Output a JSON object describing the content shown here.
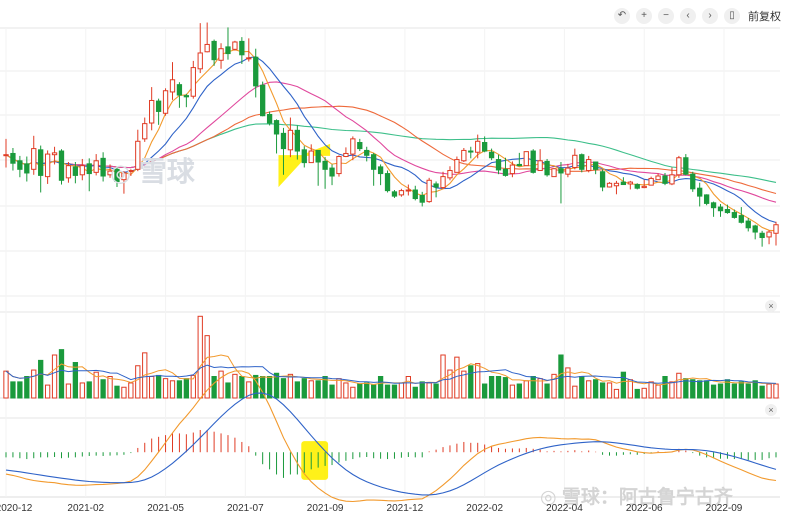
{
  "toolbar": {
    "buttons": [
      {
        "icon": "undo-icon",
        "glyph": "↶"
      },
      {
        "icon": "plus-icon",
        "glyph": "+"
      },
      {
        "icon": "minus-icon",
        "glyph": "−"
      },
      {
        "icon": "chevron-left-icon",
        "glyph": "‹"
      },
      {
        "icon": "chevron-right-icon",
        "glyph": "›"
      },
      {
        "icon": "stock-icon",
        "glyph": "▯"
      }
    ],
    "adjust_label": "前复权"
  },
  "watermark": {
    "center": "雪球",
    "corner": "雪球：阿古鲁宁古齐"
  },
  "colors": {
    "up": "#e03b24",
    "down": "#1a9a3c",
    "ma5": "#f29a2e",
    "ma10": "#2f63c8",
    "ma20": "#e0489d",
    "ma30": "#ee6a3b",
    "ma60": "#3dbf8a",
    "highlight": "#fff000"
  },
  "chart_data": {
    "type": "candlestick",
    "x_ticks": [
      "2020-12",
      "2021-02",
      "2021-05",
      "2021-07",
      "2021-09",
      "2021-12",
      "2022-02",
      "2022-04",
      "2022-06",
      "2022-09"
    ],
    "price_range": [
      4,
      48
    ],
    "price": [
      [
        27.2,
        27.2,
        29.8,
        25.1
      ],
      [
        27.4,
        25.8,
        28.3,
        24.6
      ],
      [
        26.2,
        24.8,
        27.0,
        23.5
      ],
      [
        25.7,
        24.2,
        26.9,
        22.8
      ],
      [
        24.8,
        28.2,
        30.3,
        23.9
      ],
      [
        28.0,
        23.8,
        28.7,
        21.0
      ],
      [
        23.6,
        27.3,
        27.9,
        22.4
      ],
      [
        27.2,
        27.5,
        28.5,
        25.6
      ],
      [
        27.8,
        23.0,
        28.1,
        22.3
      ],
      [
        23.4,
        25.4,
        26.0,
        22.6
      ],
      [
        25.2,
        23.8,
        26.0,
        22.5
      ],
      [
        23.9,
        25.4,
        26.5,
        23.0
      ],
      [
        25.7,
        24.1,
        26.6,
        21.2
      ],
      [
        24.3,
        26.2,
        27.3,
        23.8
      ],
      [
        26.6,
        23.7,
        27.6,
        22.8
      ],
      [
        23.9,
        24.5,
        25.6,
        23.4
      ],
      [
        24.8,
        22.8,
        25.2,
        21.9
      ],
      [
        23.1,
        24.2,
        24.5,
        20.8
      ],
      [
        24.5,
        24.6,
        24.8,
        23.7
      ],
      [
        24.8,
        29.4,
        31.3,
        24.5
      ],
      [
        29.8,
        32.3,
        33.3,
        29.3
      ],
      [
        32.4,
        36.1,
        38.3,
        31.2
      ],
      [
        36.0,
        34.3,
        36.4,
        32.1
      ],
      [
        34.0,
        37.7,
        38.1,
        33.6
      ],
      [
        37.5,
        39.5,
        42.4,
        36.2
      ],
      [
        38.7,
        37.0,
        39.1,
        34.9
      ],
      [
        36.9,
        36.7,
        37.2,
        35.0
      ],
      [
        36.8,
        41.5,
        42.6,
        36.4
      ],
      [
        41.3,
        43.9,
        48.8,
        40.6
      ],
      [
        44.1,
        45.3,
        48.9,
        44.0
      ],
      [
        45.8,
        42.8,
        46.1,
        41.8
      ],
      [
        42.7,
        44.6,
        45.5,
        41.3
      ],
      [
        44.9,
        43.8,
        48.1,
        42.8
      ],
      [
        44.5,
        45.7,
        45.9,
        44.3
      ],
      [
        45.8,
        43.6,
        46.5,
        42.1
      ],
      [
        43.1,
        43.1,
        46.3,
        42.5
      ],
      [
        43.2,
        38.5,
        44.6,
        36.6
      ],
      [
        38.6,
        33.6,
        39.2,
        33.5
      ],
      [
        33.8,
        32.4,
        34.3,
        32.0
      ],
      [
        32.8,
        30.6,
        33.0,
        27.4
      ],
      [
        30.7,
        28.2,
        31.6,
        23.9
      ],
      [
        28.0,
        31.2,
        33.3,
        26.8
      ],
      [
        31.2,
        27.8,
        32.0,
        26.4
      ],
      [
        28.0,
        25.9,
        28.6,
        25.1
      ],
      [
        25.9,
        27.8,
        28.9,
        27.0
      ],
      [
        27.9,
        26.0,
        27.8,
        22.1
      ],
      [
        26.1,
        24.8,
        26.8,
        21.6
      ],
      [
        25.0,
        23.7,
        25.6,
        22.2
      ],
      [
        24.1,
        26.9,
        27.1,
        23.6
      ],
      [
        26.9,
        27.4,
        28.4,
        26.8
      ],
      [
        27.3,
        29.8,
        30.2,
        26.3
      ],
      [
        29.2,
        28.2,
        29.8,
        27.8
      ],
      [
        27.9,
        27.1,
        28.5,
        26.1
      ],
      [
        27.2,
        24.8,
        27.5,
        22.1
      ],
      [
        25.2,
        24.1,
        25.6,
        22.2
      ],
      [
        24.1,
        21.3,
        24.6,
        21.0
      ],
      [
        21.1,
        20.4,
        21.4,
        20.1
      ],
      [
        20.6,
        21.3,
        21.6,
        20.3
      ],
      [
        21.3,
        21.4,
        22.3,
        20.5
      ],
      [
        21.4,
        20.0,
        22.1,
        19.7
      ],
      [
        20.5,
        19.4,
        21.1,
        18.7
      ],
      [
        19.5,
        23.0,
        23.4,
        19.3
      ],
      [
        22.4,
        21.9,
        22.8,
        20.2
      ],
      [
        21.8,
        23.6,
        24.4,
        21.6
      ],
      [
        23.4,
        24.6,
        25.3,
        23.0
      ],
      [
        24.3,
        26.4,
        26.9,
        24.3
      ],
      [
        26.2,
        27.9,
        28.3,
        26.0
      ],
      [
        27.8,
        27.7,
        28.5,
        26.6
      ],
      [
        27.6,
        29.4,
        30.5,
        26.6
      ],
      [
        29.2,
        27.8,
        30.2,
        27.6
      ],
      [
        27.6,
        26.7,
        28.2,
        26.3
      ],
      [
        26.4,
        24.7,
        27.2,
        24.0
      ],
      [
        24.8,
        23.8,
        26.7,
        23.6
      ],
      [
        24.1,
        25.5,
        26.1,
        23.5
      ],
      [
        25.6,
        25.4,
        27.5,
        25.3
      ],
      [
        25.4,
        27.7,
        27.6,
        25.4
      ],
      [
        27.8,
        24.3,
        28.1,
        24.1
      ],
      [
        24.6,
        26.2,
        28.1,
        24.6
      ],
      [
        26.1,
        23.9,
        26.5,
        23.6
      ],
      [
        23.6,
        24.9,
        25.0,
        23.8
      ],
      [
        24.9,
        24.2,
        26.0,
        19.2
      ],
      [
        24.0,
        25.0,
        25.7,
        23.5
      ],
      [
        25.1,
        27.1,
        28.2,
        24.8
      ],
      [
        27.2,
        24.8,
        27.4,
        24.3
      ],
      [
        24.6,
        26.4,
        27.0,
        24.3
      ],
      [
        26.0,
        24.8,
        25.8,
        24.0
      ],
      [
        24.4,
        21.9,
        24.8,
        21.2
      ],
      [
        21.9,
        22.5,
        22.7,
        21.8
      ],
      [
        22.1,
        22.5,
        22.9,
        20.7
      ],
      [
        22.7,
        22.3,
        23.5,
        22.3
      ],
      [
        22.4,
        22.7,
        22.9,
        21.5
      ],
      [
        22.3,
        21.7,
        22.5,
        21.5
      ],
      [
        21.8,
        22.0,
        23.1,
        21.7
      ],
      [
        22.2,
        23.3,
        23.6,
        22.2
      ],
      [
        23.1,
        23.7,
        24.1,
        23.3
      ],
      [
        23.7,
        22.5,
        24.2,
        22.2
      ],
      [
        22.4,
        23.9,
        25.1,
        22.2
      ],
      [
        23.9,
        26.7,
        27.0,
        23.4
      ],
      [
        26.7,
        24.0,
        27.3,
        23.8
      ],
      [
        24.0,
        21.6,
        24.4,
        21.1
      ],
      [
        21.7,
        20.4,
        22.6,
        18.7
      ],
      [
        20.6,
        19.2,
        20.7,
        18.9
      ],
      [
        19.3,
        18.5,
        19.5,
        17.0
      ],
      [
        18.6,
        18.0,
        19.1,
        17.0
      ],
      [
        18.2,
        17.7,
        19.0,
        17.5
      ],
      [
        17.7,
        16.9,
        18.2,
        16.7
      ],
      [
        17.2,
        16.1,
        18.6,
        15.9
      ],
      [
        16.3,
        15.2,
        16.8,
        14.6
      ],
      [
        15.5,
        14.5,
        15.7,
        13.3
      ],
      [
        14.3,
        13.6,
        14.7,
        12.1
      ],
      [
        13.7,
        14.5,
        14.8,
        12.5
      ],
      [
        14.3,
        15.7,
        16.2,
        12.3
      ]
    ],
    "volume_range": [
      0,
      80
    ],
    "volume": [
      25,
      15,
      15,
      20,
      26,
      35,
      12,
      40,
      45,
      13,
      33,
      14,
      15,
      24,
      17,
      20,
      11,
      10,
      14,
      30,
      42,
      20,
      21,
      18,
      16,
      16,
      18,
      21,
      76,
      58,
      20,
      25,
      14,
      22,
      20,
      15,
      21,
      20,
      20,
      23,
      18,
      22,
      15,
      18,
      16,
      16,
      20,
      12,
      18,
      14,
      10,
      13,
      14,
      12,
      20,
      12,
      12,
      14,
      20,
      10,
      15,
      14,
      13,
      40,
      26,
      38,
      25,
      30,
      32,
      13,
      20,
      20,
      19,
      12,
      13,
      16,
      20,
      18,
      13,
      22,
      40,
      28,
      11,
      20,
      16,
      17,
      14,
      14,
      8,
      24,
      17,
      8,
      9,
      15,
      12,
      20,
      15,
      23,
      18,
      17,
      16,
      16,
      12,
      13,
      17,
      13,
      15,
      13,
      16,
      11,
      13,
      13
    ],
    "macd_range": [
      -2.5,
      2.0
    ],
    "macd_hist": [
      -0.3,
      -0.3,
      -0.35,
      -0.4,
      -0.35,
      -0.3,
      -0.3,
      -0.28,
      -0.35,
      -0.32,
      -0.3,
      -0.25,
      -0.22,
      -0.2,
      -0.22,
      -0.2,
      -0.18,
      -0.15,
      -0.05,
      0.25,
      0.55,
      0.8,
      0.9,
      1.0,
      1.1,
      1.1,
      1.05,
      1.15,
      1.3,
      1.3,
      1.2,
      1.1,
      1.0,
      0.85,
      0.6,
      0.35,
      -0.2,
      -0.7,
      -1.0,
      -1.3,
      -1.5,
      -1.3,
      -1.3,
      -1.2,
      -1.0,
      -0.9,
      -0.8,
      -0.75,
      -0.6,
      -0.5,
      -0.4,
      -0.3,
      -0.28,
      -0.35,
      -0.38,
      -0.4,
      -0.38,
      -0.32,
      -0.28,
      -0.3,
      -0.3,
      0.05,
      0.15,
      0.3,
      0.4,
      0.5,
      0.6,
      0.55,
      0.55,
      0.45,
      0.35,
      0.25,
      0.2,
      0.22,
      0.22,
      0.25,
      0.2,
      0.15,
      0.05,
      0.08,
      0.05,
      0.08,
      0.12,
      0.05,
      0.1,
      0.03,
      -0.15,
      -0.2,
      -0.2,
      -0.15,
      -0.12,
      -0.15,
      -0.1,
      -0.05,
      0.05,
      0.02,
      0.05,
      0.2,
      0.1,
      -0.05,
      -0.2,
      -0.3,
      -0.35,
      -0.38,
      -0.38,
      -0.4,
      -0.4,
      -0.45,
      -0.45,
      -0.45,
      -0.35,
      -0.3
    ],
    "highlights": {
      "price_candle_range": [
        40,
        46
      ],
      "macd_bar_range": [
        43,
        46
      ]
    }
  }
}
